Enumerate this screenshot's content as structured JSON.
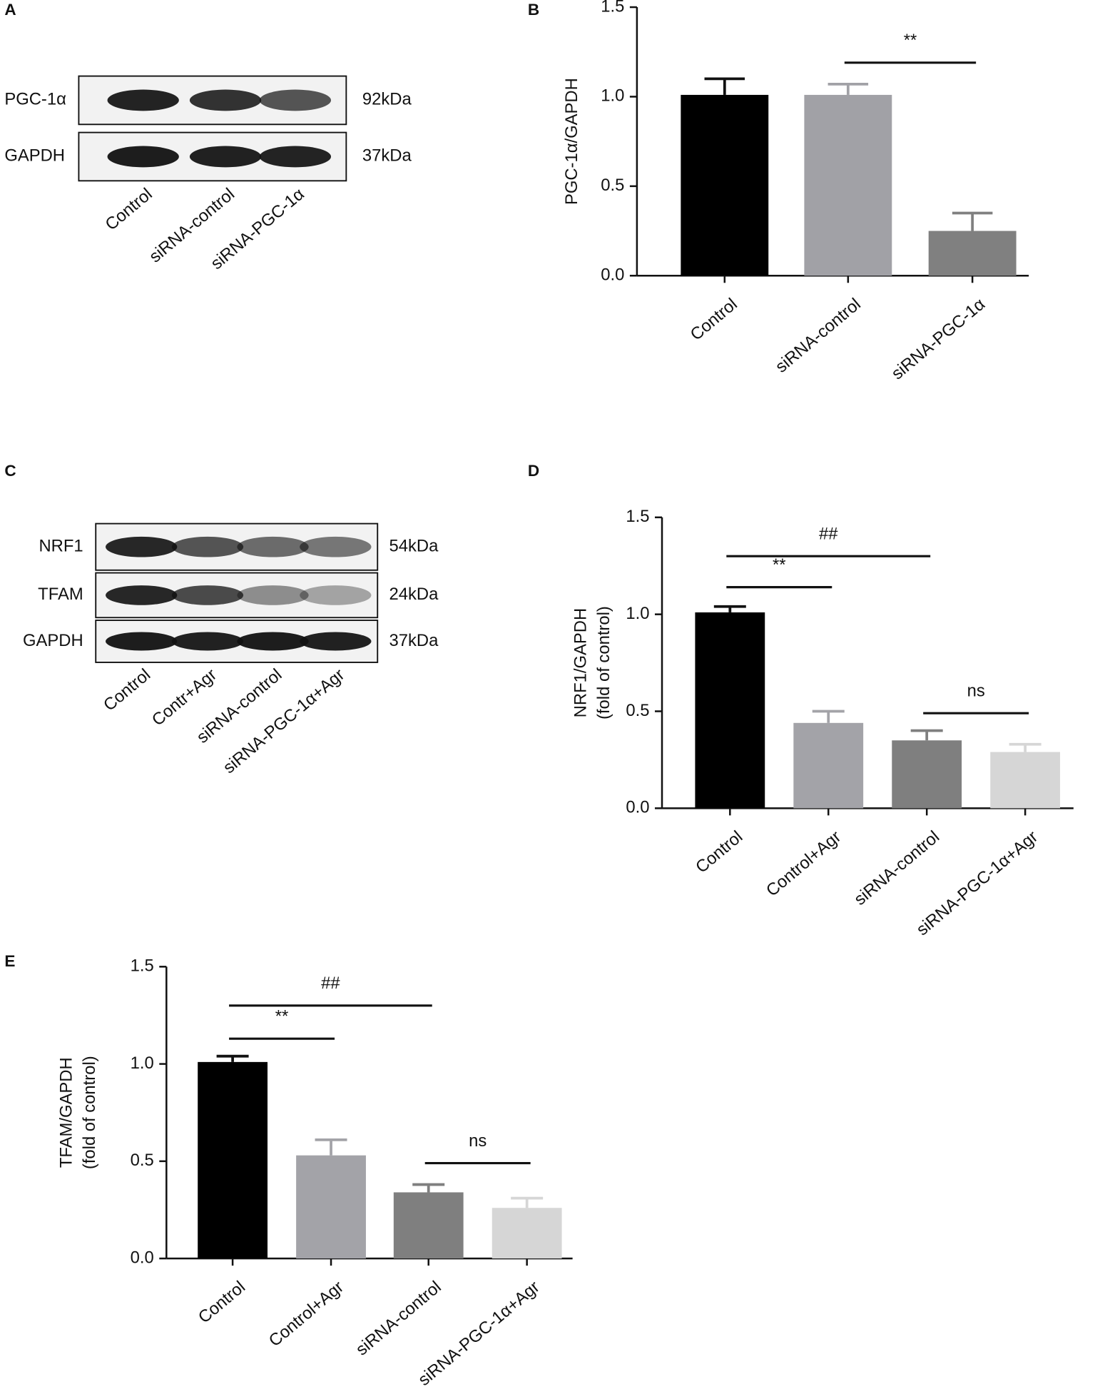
{
  "chart_data": [
    {
      "type": "blot",
      "panel": "A",
      "rows": [
        "PGC-1α",
        "GAPDH"
      ],
      "sizes": [
        "92kDa",
        "37kDa"
      ],
      "lanes": [
        "Control",
        "siRNA-control",
        "siRNA-PGC-1α"
      ]
    },
    {
      "type": "bar",
      "panel": "B",
      "ylabel": [
        "PGC-1α/GAPDH"
      ],
      "categories": [
        "Control",
        "siRNA-control",
        "siRNA-PGC-1α"
      ],
      "values": [
        1.01,
        1.01,
        0.25
      ],
      "errors": [
        0.09,
        0.06,
        0.1
      ],
      "colors": [
        "#000000",
        "#a1a1a6",
        "#808080"
      ],
      "ylim": [
        0,
        1.5
      ],
      "yticks": [
        {
          "value": 0,
          "label": "0.0"
        },
        {
          "value": 0.5,
          "label": "0.5"
        },
        {
          "value": 1,
          "label": "1.0"
        },
        {
          "value": 1.5,
          "label": "1.5"
        }
      ],
      "annotations": [
        {
          "text": "**",
          "from": 1,
          "to": 2,
          "y": 1.19
        }
      ]
    },
    {
      "type": "blot",
      "panel": "C",
      "rows": [
        "NRF1",
        "TFAM",
        "GAPDH"
      ],
      "sizes": [
        "54kDa",
        "24kDa",
        "37kDa"
      ],
      "lanes": [
        "Control",
        "Contr+Agr",
        "siRNA-control",
        "siRNA-PGC-1α+Agr"
      ]
    },
    {
      "type": "bar",
      "panel": "D",
      "ylabel": [
        "NRF1/GAPDH",
        "(fold of control)"
      ],
      "categories": [
        "Control",
        "Control+Agr",
        "siRNA-control",
        "siRNA-PGC-1α+Agr"
      ],
      "values": [
        1.01,
        0.44,
        0.35,
        0.29
      ],
      "errors": [
        0.03,
        0.06,
        0.05,
        0.04
      ],
      "colors": [
        "#000000",
        "#a3a3a8",
        "#7f7f7f",
        "#d6d6d6"
      ],
      "ylim": [
        0,
        1.5
      ],
      "yticks": [
        {
          "value": 0,
          "label": "0.0"
        },
        {
          "value": 0.5,
          "label": "0.5"
        },
        {
          "value": 1,
          "label": "1.0"
        },
        {
          "value": 1.5,
          "label": "1.5"
        }
      ],
      "annotations": [
        {
          "text": "##",
          "from": 0,
          "to": 2,
          "y": 1.3
        },
        {
          "text": "**",
          "from": 0,
          "to": 1,
          "y": 1.14
        },
        {
          "text": "ns",
          "from": 2,
          "to": 3,
          "y": 0.49
        }
      ]
    },
    {
      "type": "bar",
      "panel": "E",
      "ylabel": [
        "TFAM/GAPDH",
        "(fold of control)"
      ],
      "categories": [
        "Control",
        "Control+Agr",
        "siRNA-control",
        "siRNA-PGC-1α+Agr"
      ],
      "values": [
        1.01,
        0.53,
        0.34,
        0.26
      ],
      "errors": [
        0.03,
        0.08,
        0.04,
        0.05
      ],
      "colors": [
        "#000000",
        "#a3a3a8",
        "#7f7f7f",
        "#d6d6d6"
      ],
      "ylim": [
        0,
        1.5
      ],
      "yticks": [
        {
          "value": 0,
          "label": "0.0"
        },
        {
          "value": 0.5,
          "label": "0.5"
        },
        {
          "value": 1,
          "label": "1.0"
        },
        {
          "value": 1.5,
          "label": "1.5"
        }
      ],
      "annotations": [
        {
          "text": "##",
          "from": 0,
          "to": 2,
          "y": 1.3
        },
        {
          "text": "**",
          "from": 0,
          "to": 1,
          "y": 1.13
        },
        {
          "text": "ns",
          "from": 2,
          "to": 3,
          "y": 0.49
        }
      ]
    }
  ]
}
